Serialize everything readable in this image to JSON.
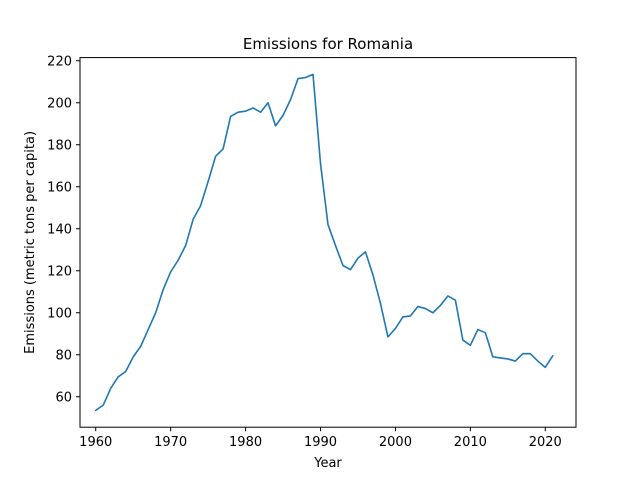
{
  "chart_data": {
    "type": "line",
    "title": "Emissions for Romania",
    "xlabel": "Year",
    "ylabel": "Emissions (metric tons per capita)",
    "xlim": [
      1957.9,
      2024.1
    ],
    "ylim": [
      45.5,
      221.5
    ],
    "xticks": [
      1960,
      1970,
      1980,
      1990,
      2000,
      2010,
      2020
    ],
    "yticks": [
      60,
      80,
      100,
      120,
      140,
      160,
      180,
      200,
      220
    ],
    "grid": false,
    "legend": "none",
    "series": [
      {
        "color": "#1f77b4",
        "x": [
          1960,
          1961,
          1962,
          1963,
          1964,
          1965,
          1966,
          1967,
          1968,
          1969,
          1970,
          1971,
          1972,
          1973,
          1974,
          1975,
          1976,
          1977,
          1978,
          1979,
          1980,
          1981,
          1982,
          1983,
          1984,
          1985,
          1986,
          1987,
          1988,
          1989,
          1990,
          1991,
          1992,
          1993,
          1994,
          1995,
          1996,
          1997,
          1998,
          1999,
          2000,
          2001,
          2002,
          2003,
          2004,
          2005,
          2006,
          2007,
          2008,
          2009,
          2010,
          2011,
          2012,
          2013,
          2014,
          2015,
          2016,
          2017,
          2018,
          2019,
          2020,
          2021
        ],
        "values": [
          53.5,
          56,
          64,
          69.5,
          72,
          79,
          84,
          92,
          100,
          111,
          119.5,
          125,
          132,
          144.5,
          151,
          162.5,
          174.5,
          178,
          193.5,
          195.5,
          196,
          197.5,
          195.5,
          200,
          189,
          194,
          201.5,
          211.5,
          212,
          213.5,
          171,
          142,
          132,
          122.5,
          120.5,
          126,
          129,
          118,
          104.5,
          88.5,
          92.5,
          98,
          98.5,
          103,
          102,
          100,
          103.5,
          108,
          106,
          87,
          84.5,
          92,
          90.5,
          79,
          78.5,
          78,
          77,
          80.5,
          80.5,
          77,
          74,
          79.5
        ]
      }
    ]
  }
}
